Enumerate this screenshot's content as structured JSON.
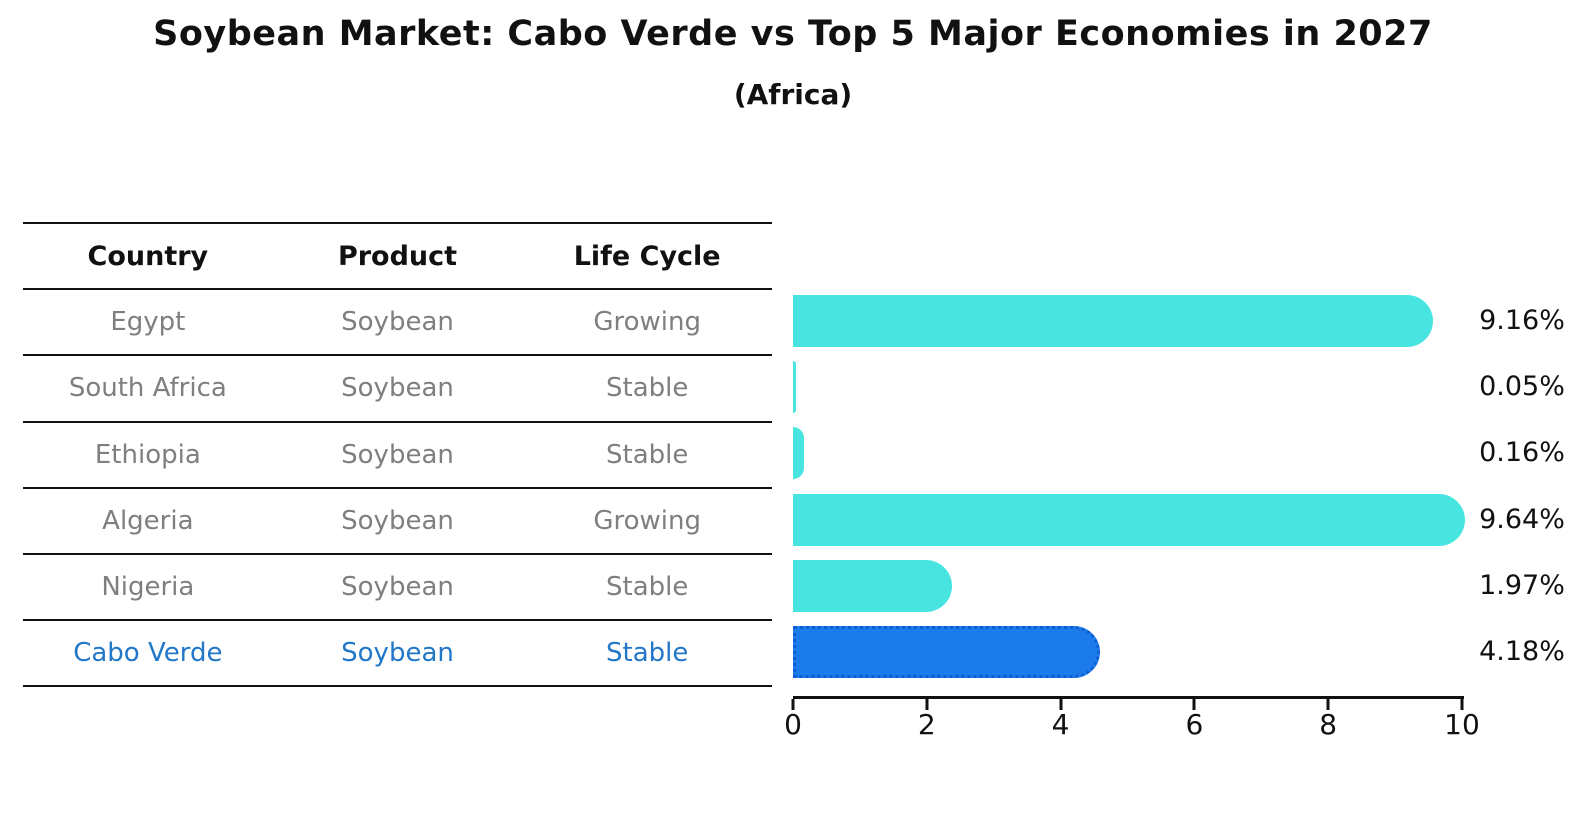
{
  "title": "Soybean Market: Cabo Verde vs Top 5 Major Economies in 2027",
  "subtitle": "(Africa)",
  "colors": {
    "bar_default": "#48e5e0",
    "bar_highlight_fill": "#1b7ce9",
    "bar_highlight_border": "#0c5ed8",
    "highlight_text": "#2277c8",
    "row_text": "#7f7f7f",
    "header_text": "#111111",
    "axis": "#111111"
  },
  "table": {
    "columns": [
      "Country",
      "Product",
      "Life Cycle"
    ],
    "rows": [
      {
        "country": "Egypt",
        "product": "Soybean",
        "life_cycle": "Growing",
        "highlight": false
      },
      {
        "country": "South Africa",
        "product": "Soybean",
        "life_cycle": "Stable",
        "highlight": false
      },
      {
        "country": "Ethiopia",
        "product": "Soybean",
        "life_cycle": "Stable",
        "highlight": false
      },
      {
        "country": "Algeria",
        "product": "Soybean",
        "life_cycle": "Growing",
        "highlight": false
      },
      {
        "country": "Nigeria",
        "product": "Soybean",
        "life_cycle": "Stable",
        "highlight": false
      },
      {
        "country": "Cabo Verde",
        "product": "Soybean",
        "life_cycle": "Stable",
        "highlight": true
      }
    ]
  },
  "chart_data": {
    "type": "bar",
    "orientation": "horizontal",
    "title": "Soybean Market: Cabo Verde vs Top 5 Major Economies in 2027",
    "subtitle": "(Africa)",
    "categories": [
      "Egypt",
      "South Africa",
      "Ethiopia",
      "Algeria",
      "Nigeria",
      "Cabo Verde"
    ],
    "values": [
      9.16,
      0.05,
      0.16,
      9.64,
      1.97,
      4.18
    ],
    "value_labels": [
      "9.16%",
      "0.05%",
      "0.16%",
      "9.64%",
      "1.97%",
      "4.18%"
    ],
    "highlight_index": 5,
    "xlim": [
      0,
      10
    ],
    "x_ticks": [
      "0",
      "2",
      "4",
      "6",
      "8",
      "10"
    ],
    "grid": false,
    "legend": false
  }
}
